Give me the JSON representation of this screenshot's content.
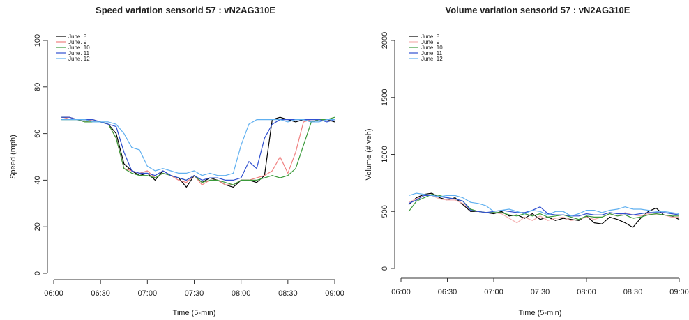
{
  "chart_data": [
    {
      "type": "line",
      "title": "Speed variation sensorid 57 : vN2AG310E",
      "xlabel": "Time (5-min)",
      "ylabel": "Speed (mph)",
      "xlim": [
        0,
        180
      ],
      "ylim": [
        0,
        100
      ],
      "xticks": [
        0,
        30,
        60,
        90,
        120,
        150,
        180
      ],
      "xtick_labels": [
        "06:00",
        "06:30",
        "07:00",
        "07:30",
        "08:00",
        "08:30",
        "09:00"
      ],
      "yticks": [
        0,
        20,
        40,
        60,
        80,
        100
      ],
      "ytick_labels": [
        "0",
        "20",
        "40",
        "60",
        "80",
        "100"
      ],
      "legend_position": "top-left",
      "x": [
        5,
        10,
        15,
        20,
        25,
        30,
        35,
        40,
        45,
        50,
        55,
        60,
        65,
        70,
        75,
        80,
        85,
        90,
        95,
        100,
        105,
        110,
        115,
        120,
        125,
        130,
        135,
        140,
        145,
        150,
        155,
        160,
        165,
        170,
        175,
        180
      ],
      "series": [
        {
          "name": "June. 8",
          "color": "#000000",
          "values": [
            67,
            67,
            66,
            66,
            66,
            65,
            64,
            60,
            47,
            44,
            42,
            43,
            40,
            44,
            42,
            41,
            37,
            42,
            39,
            41,
            40,
            38,
            37,
            40,
            40,
            39,
            42,
            66,
            67,
            66,
            65,
            66,
            65,
            66,
            66,
            65
          ]
        },
        {
          "name": "June. 9",
          "color": "#f08080",
          "values": [
            66,
            67,
            66,
            65,
            66,
            65,
            64,
            58,
            45,
            44,
            43,
            44,
            41,
            43,
            42,
            40,
            39,
            42,
            38,
            40,
            40,
            38,
            38,
            40,
            40,
            41,
            42,
            44,
            50,
            43,
            52,
            65,
            66,
            66,
            66,
            66
          ]
        },
        {
          "name": "June. 10",
          "color": "#3a9a3a",
          "values": [
            66,
            66,
            66,
            65,
            65,
            65,
            64,
            58,
            45,
            43,
            42,
            42,
            41,
            43,
            42,
            41,
            40,
            42,
            39,
            40,
            40,
            39,
            38,
            40,
            40,
            40,
            41,
            42,
            41,
            42,
            45,
            55,
            65,
            66,
            66,
            67
          ]
        },
        {
          "name": "June. 11",
          "color": "#3050d0",
          "values": [
            67,
            67,
            66,
            66,
            66,
            65,
            64,
            63,
            52,
            44,
            43,
            43,
            42,
            44,
            42,
            41,
            40,
            42,
            40,
            41,
            41,
            40,
            40,
            41,
            48,
            45,
            58,
            64,
            66,
            66,
            66,
            66,
            66,
            66,
            65,
            66
          ]
        },
        {
          "name": "June. 12",
          "color": "#60b0f0",
          "values": [
            66,
            66,
            66,
            66,
            65,
            65,
            65,
            64,
            60,
            54,
            53,
            46,
            44,
            45,
            44,
            43,
            43,
            44,
            42,
            43,
            42,
            42,
            43,
            55,
            64,
            66,
            66,
            66,
            66,
            65,
            66,
            66,
            65,
            65,
            66,
            66
          ]
        }
      ]
    },
    {
      "type": "line",
      "title": "Volume variation sensorid 57 : vN2AG310E",
      "xlabel": "Time (5-min)",
      "ylabel": "Volume (# veh)",
      "xlim": [
        0,
        180
      ],
      "ylim": [
        0,
        2000
      ],
      "xticks": [
        0,
        30,
        60,
        90,
        120,
        150,
        180
      ],
      "xtick_labels": [
        "06:00",
        "06:30",
        "07:00",
        "07:30",
        "08:00",
        "08:30",
        "09:00"
      ],
      "yticks": [
        0,
        500,
        1000,
        1500,
        2000
      ],
      "ytick_labels": [
        "0",
        "500",
        "1000",
        "1500",
        "2000"
      ],
      "legend_position": "top-left",
      "x": [
        5,
        10,
        15,
        20,
        25,
        30,
        35,
        40,
        45,
        50,
        55,
        60,
        65,
        70,
        75,
        80,
        85,
        90,
        95,
        100,
        105,
        110,
        115,
        120,
        125,
        130,
        135,
        140,
        145,
        150,
        155,
        160,
        165,
        170,
        175,
        180
      ],
      "series": [
        {
          "name": "June. 8",
          "color": "#000000",
          "values": [
            560,
            620,
            650,
            660,
            620,
            600,
            620,
            560,
            500,
            500,
            490,
            480,
            500,
            460,
            470,
            440,
            480,
            430,
            450,
            420,
            440,
            430,
            420,
            460,
            400,
            390,
            450,
            430,
            400,
            360,
            440,
            500,
            530,
            470,
            460,
            430
          ]
        },
        {
          "name": "June. 9",
          "color": "#f5b0b0",
          "values": [
            580,
            610,
            640,
            640,
            610,
            600,
            600,
            570,
            510,
            500,
            490,
            490,
            480,
            440,
            400,
            450,
            420,
            460,
            420,
            440,
            450,
            420,
            430,
            450,
            430,
            450,
            480,
            460,
            490,
            470,
            460,
            480,
            470,
            470,
            450,
            450
          ]
        },
        {
          "name": "June. 10",
          "color": "#3a9a3a",
          "values": [
            500,
            590,
            620,
            650,
            640,
            620,
            610,
            590,
            520,
            500,
            490,
            490,
            490,
            470,
            460,
            480,
            460,
            480,
            450,
            460,
            470,
            450,
            430,
            460,
            450,
            450,
            480,
            460,
            470,
            440,
            450,
            470,
            480,
            470,
            460,
            460
          ]
        },
        {
          "name": "June. 11",
          "color": "#3050d0",
          "values": [
            570,
            600,
            640,
            640,
            630,
            620,
            610,
            590,
            510,
            500,
            490,
            500,
            510,
            500,
            490,
            490,
            510,
            540,
            480,
            470,
            470,
            460,
            460,
            480,
            470,
            470,
            490,
            480,
            480,
            470,
            480,
            490,
            490,
            490,
            480,
            470
          ]
        },
        {
          "name": "June. 12",
          "color": "#60b0f0",
          "values": [
            640,
            660,
            650,
            640,
            630,
            640,
            640,
            620,
            580,
            570,
            550,
            500,
            510,
            520,
            500,
            480,
            510,
            500,
            470,
            500,
            500,
            460,
            480,
            510,
            510,
            490,
            510,
            520,
            540,
            520,
            520,
            510,
            500,
            500,
            490,
            480
          ]
        }
      ]
    }
  ]
}
